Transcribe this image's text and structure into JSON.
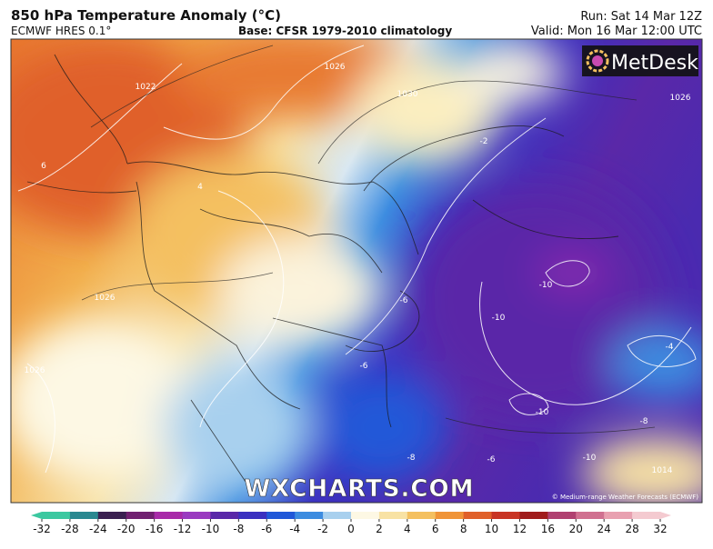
{
  "header": {
    "title": "850 hPa Temperature Anomaly (°C)",
    "model": "ECMWF HRES 0.1°",
    "base": "Base: CFSR 1979-2010 climatology",
    "run": "Run: Sat 14 Mar 12Z",
    "valid": "Valid: Mon 16 Mar 12:00 UTC"
  },
  "map": {
    "logo": "MetDesk",
    "watermark": "WXCHARTS.COM",
    "credit": "© Medium-range Weather Forecasts (ECMWF)",
    "contour_labels": [
      "1022",
      "1026",
      "1030",
      "1026",
      "-10",
      "-10",
      "-10",
      "-10",
      "-8",
      "-8",
      "-6",
      "-6",
      "-6",
      "-4",
      "-2",
      "6",
      "4",
      "1026",
      "1026",
      "1014"
    ]
  },
  "colorbar": {
    "ticks": [
      -32,
      -28,
      -24,
      -20,
      -16,
      -12,
      -10,
      -8,
      -6,
      -4,
      -2,
      0,
      2,
      4,
      6,
      8,
      10,
      12,
      16,
      20,
      24,
      28,
      32
    ],
    "colors": [
      "#3cc8a0",
      "#2a8890",
      "#3a2050",
      "#702070",
      "#a82aa8",
      "#9a3ac0",
      "#5a28a8",
      "#3a30c0",
      "#2058d8",
      "#3c8ce0",
      "#a8d0ee",
      "#fdf8e4",
      "#f8e2a4",
      "#f4c060",
      "#f09438",
      "#e0602a",
      "#c83424",
      "#a01c1c",
      "#b04070",
      "#d07090",
      "#e8a0b0",
      "#f4cad0"
    ]
  }
}
